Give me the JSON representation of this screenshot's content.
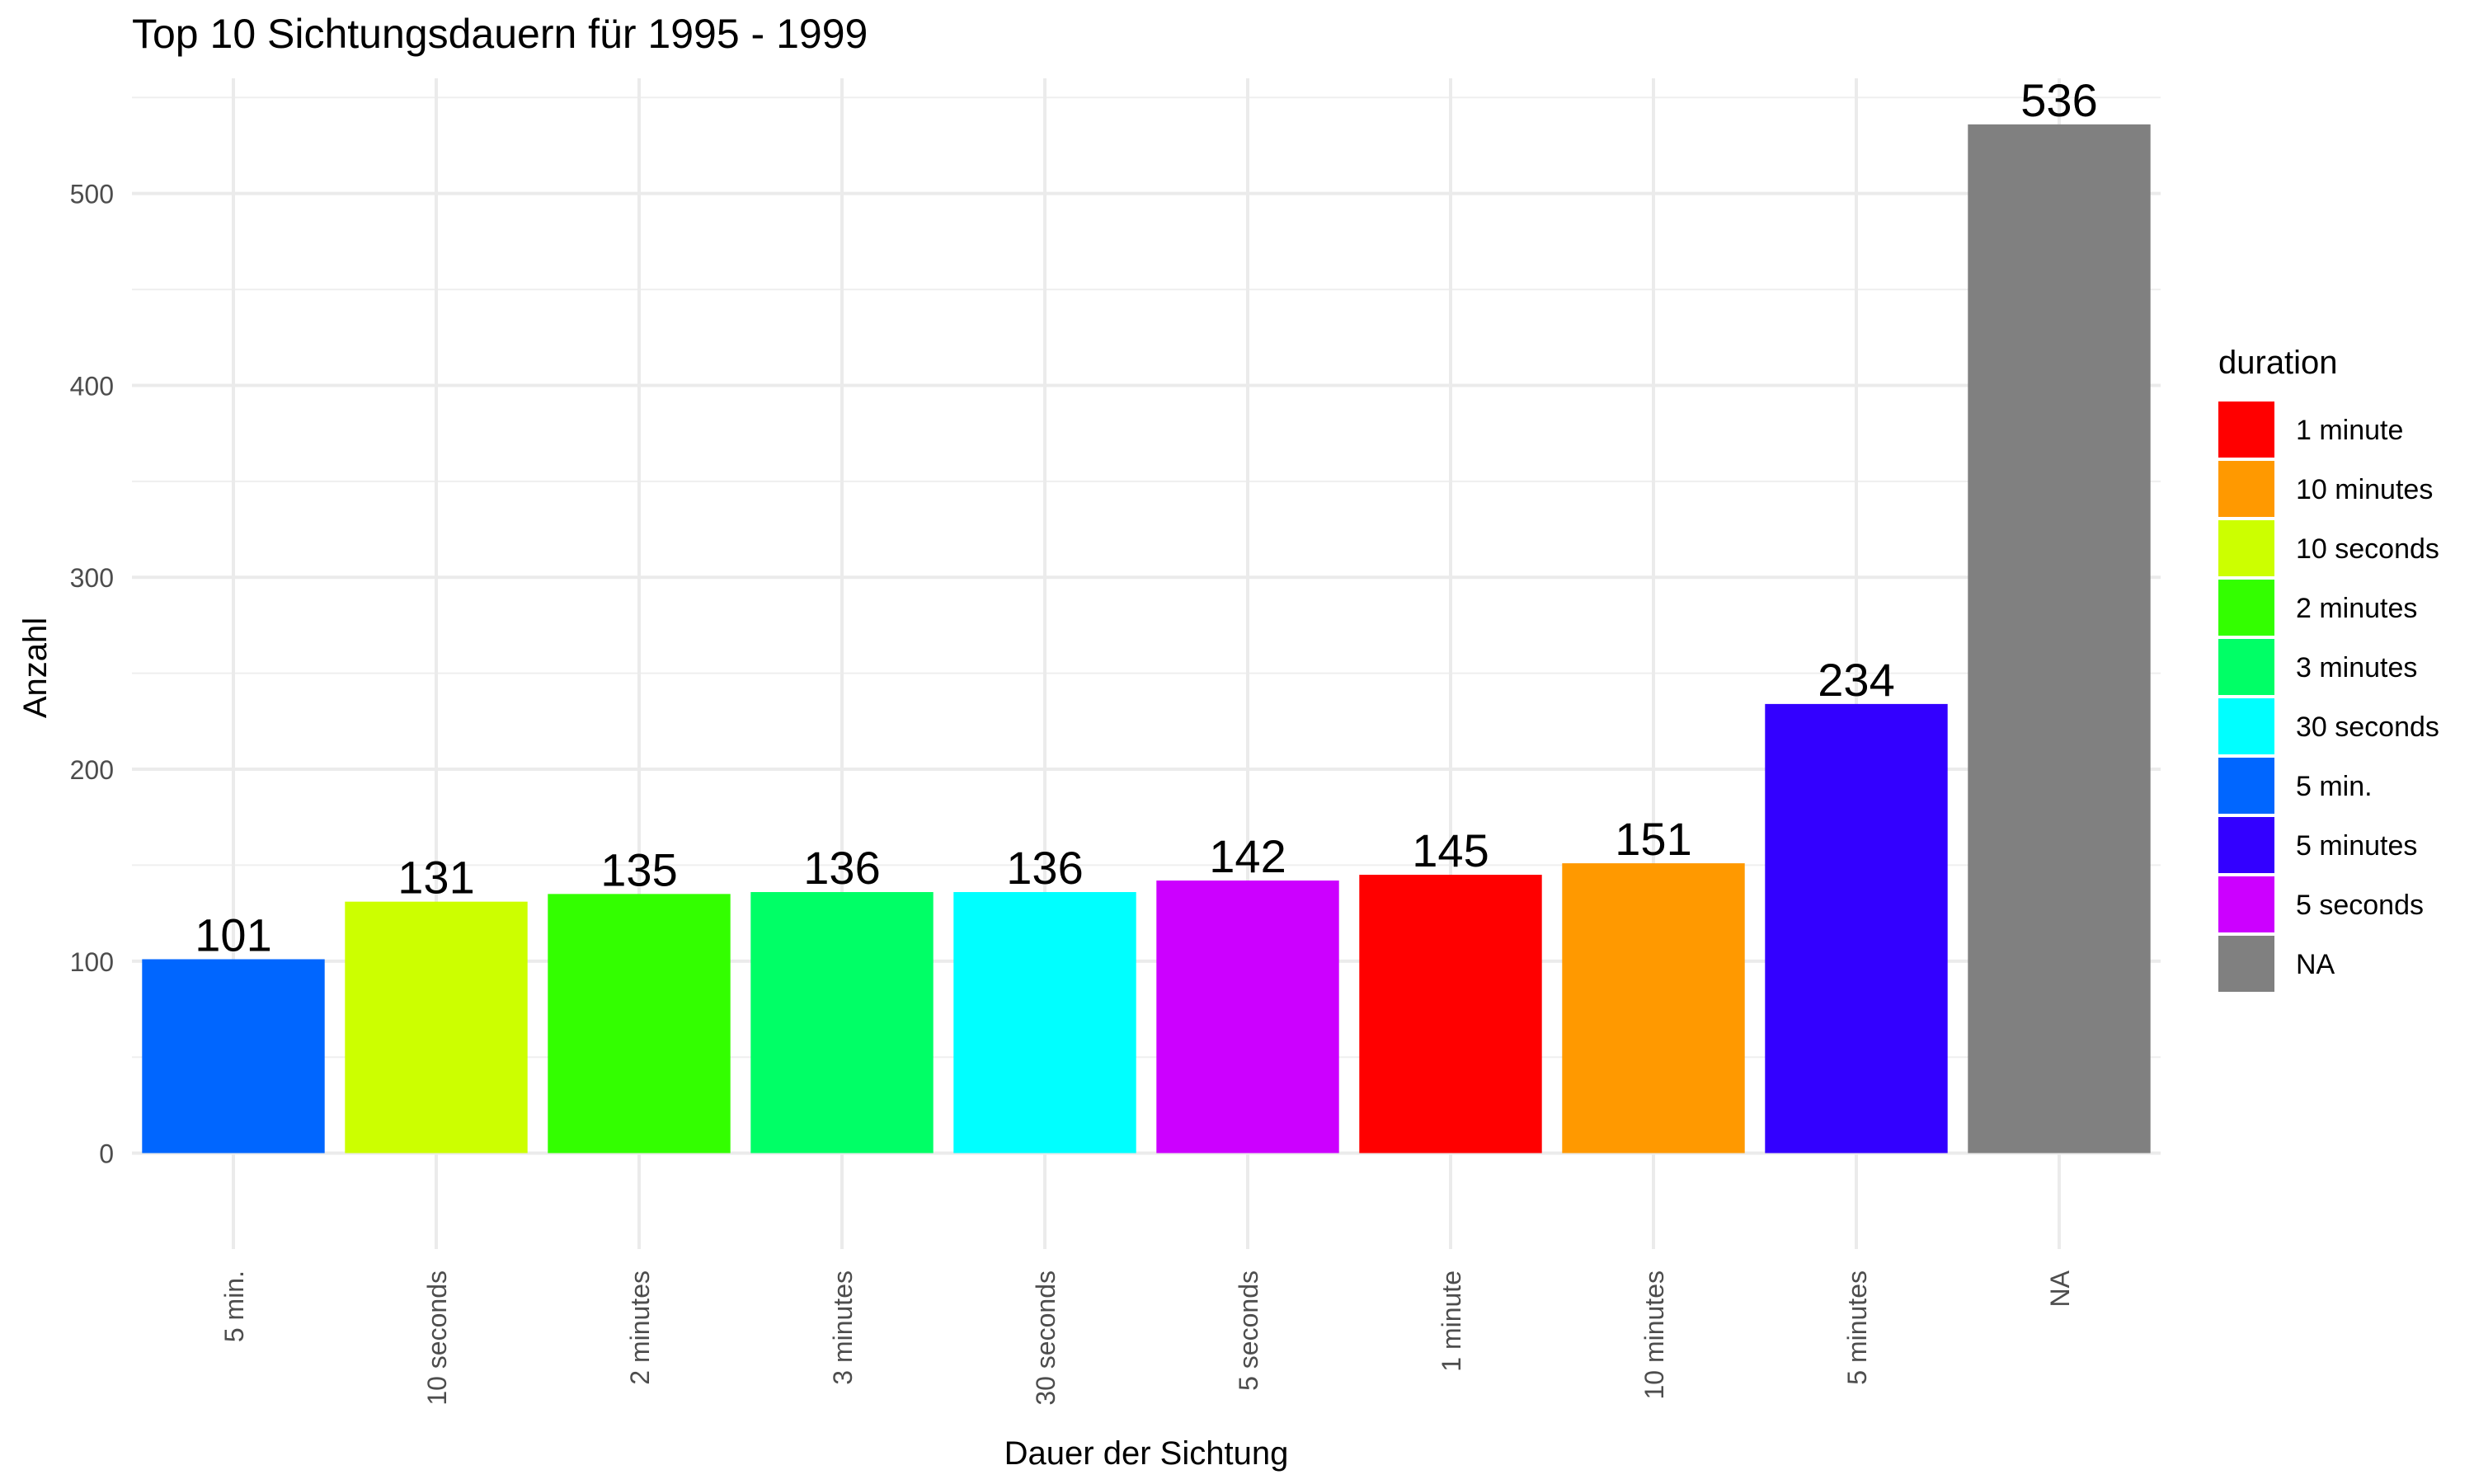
{
  "chart_data": {
    "type": "bar",
    "title": "Top 10 Sichtungsdauern für 1995 - 1999",
    "xlabel": "Dauer der Sichtung",
    "ylabel": "Anzahl",
    "ylim": [
      -50,
      560
    ],
    "yticks": [
      0,
      100,
      200,
      300,
      400,
      500
    ],
    "ytick_labels": [
      "0",
      "100",
      "200",
      "300",
      "400",
      "500"
    ],
    "grid": true,
    "legend_position": "right",
    "legend_title": "duration",
    "categories": [
      "5 min.",
      "10 seconds",
      "2 minutes",
      "3 minutes",
      "30 seconds",
      "5 seconds",
      "1 minute",
      "10 minutes",
      "5 minutes",
      "NA"
    ],
    "values": [
      101,
      131,
      135,
      136,
      136,
      142,
      145,
      151,
      234,
      536
    ],
    "value_labels": [
      "101",
      "131",
      "135",
      "136",
      "136",
      "142",
      "145",
      "151",
      "234",
      "536"
    ],
    "bar_colors": [
      "#0066FF",
      "#CCFF00",
      "#33FF00",
      "#00FF66",
      "#00FFFF",
      "#CC00FF",
      "#FF0000",
      "#FF9900",
      "#3300FF",
      "#808080"
    ],
    "legend": [
      {
        "label": "1 minute",
        "color": "#FF0000"
      },
      {
        "label": "10 minutes",
        "color": "#FF9900"
      },
      {
        "label": "10 seconds",
        "color": "#CCFF00"
      },
      {
        "label": "2 minutes",
        "color": "#33FF00"
      },
      {
        "label": "3 minutes",
        "color": "#00FF66"
      },
      {
        "label": "30 seconds",
        "color": "#00FFFF"
      },
      {
        "label": "5 min.",
        "color": "#0066FF"
      },
      {
        "label": "5 minutes",
        "color": "#3300FF"
      },
      {
        "label": "5 seconds",
        "color": "#CC00FF"
      },
      {
        "label": "NA",
        "color": "#808080"
      }
    ]
  }
}
